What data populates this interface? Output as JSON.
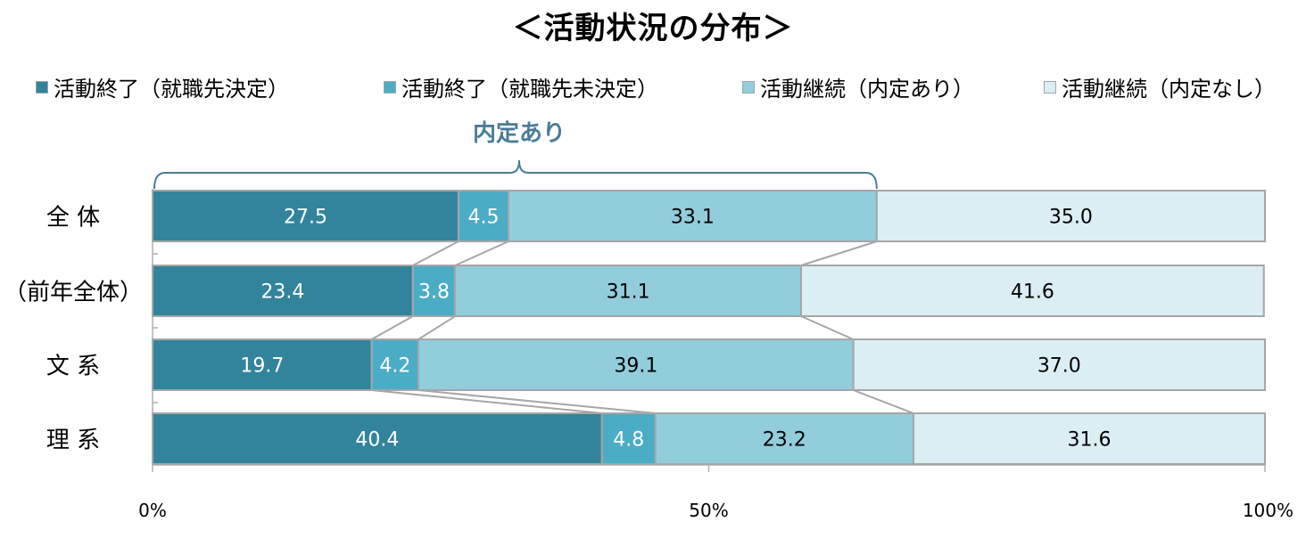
{
  "chart_data": {
    "type": "bar",
    "orientation": "horizontal",
    "stacked": true,
    "title": "＜活動状況の分布＞",
    "categories": [
      "全 体",
      "（前年全体）",
      "文 系",
      "理 系"
    ],
    "series": [
      {
        "name": "活動終了（就職先決定）",
        "color": "#31849b",
        "label_color": "#ffffff",
        "values": [
          27.5,
          23.4,
          19.7,
          40.4
        ]
      },
      {
        "name": "活動終了（就職先未決定）",
        "color": "#4bacc6",
        "label_color": "#ffffff",
        "values": [
          4.5,
          3.8,
          4.2,
          4.8
        ]
      },
      {
        "name": "活動継続（内定あり）",
        "color": "#92cddc",
        "label_color": "#000000",
        "values": [
          33.1,
          31.1,
          39.1,
          23.2
        ]
      },
      {
        "name": "活動継続（内定なし）",
        "color": "#daeef3",
        "label_color": "#000000",
        "values": [
          35.0,
          41.6,
          37.0,
          31.6
        ]
      }
    ],
    "xlim": [
      0,
      100
    ],
    "x_ticks": [
      "0%",
      "50%",
      "100%"
    ],
    "legend_position": "top",
    "bracket": {
      "label": "内定あり",
      "category": "全 体",
      "spans_series": [
        0,
        1,
        2
      ]
    },
    "connector_lines": true
  }
}
